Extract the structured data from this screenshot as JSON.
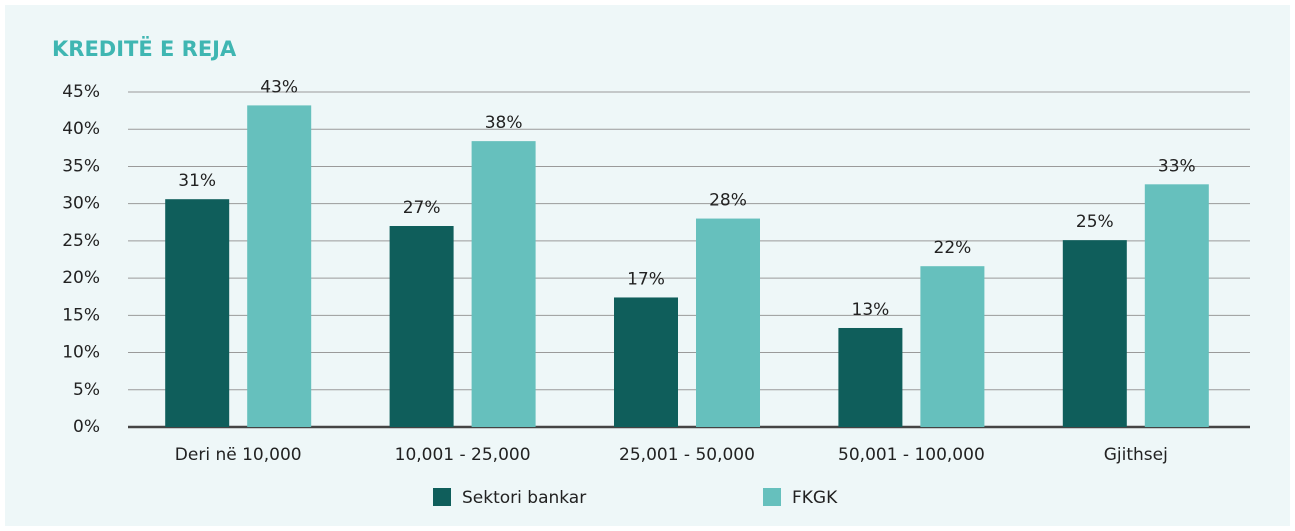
{
  "chart_data": {
    "type": "bar",
    "title": "KREDITË E REJA",
    "categories": [
      "Deri në 10,000",
      "10,001 - 25,000",
      "25,001 - 50,000",
      "50,001 - 100,000",
      "Gjithsej"
    ],
    "series": [
      {
        "name": "Sektori bankar",
        "color": "#0f5e5b",
        "values": [
          30.6,
          27,
          17.4,
          13.3,
          25.1
        ],
        "value_labels": [
          "31%",
          "27%",
          "17%",
          "13%",
          "25%"
        ]
      },
      {
        "name": "FKGK",
        "color": "#66c0bd",
        "values": [
          43.2,
          38.4,
          28,
          21.6,
          32.6
        ],
        "value_labels": [
          "43%",
          "38%",
          "28%",
          "22%",
          "33%"
        ]
      }
    ],
    "ylim": [
      0,
      45
    ],
    "yticks": [
      {
        "value": 0,
        "label": "0%"
      },
      {
        "value": 5,
        "label": "5%"
      },
      {
        "value": 10,
        "label": "10%"
      },
      {
        "value": 15,
        "label": "15%"
      },
      {
        "value": 20,
        "label": "20%"
      },
      {
        "value": 25,
        "label": "25%"
      },
      {
        "value": 30,
        "label": "30%"
      },
      {
        "value": 35,
        "label": "35%"
      },
      {
        "value": 40,
        "label": "40%"
      },
      {
        "value": 45,
        "label": "45%"
      }
    ],
    "grid": true,
    "legend": "bottom"
  }
}
